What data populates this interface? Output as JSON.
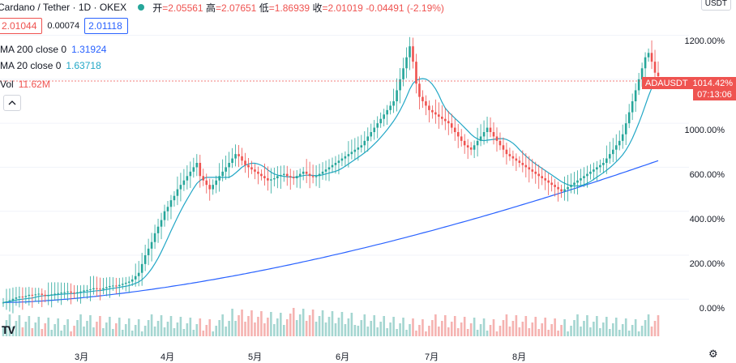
{
  "header": {
    "symbol": "Cardano / Tether · 1D · OKEX",
    "ohlc": [
      {
        "k": "开",
        "v": "=2.05561"
      },
      {
        "k": "高",
        "v": "=2.07651"
      },
      {
        "k": "低",
        "v": "=1.86939"
      },
      {
        "k": "收",
        "v": "=2.01019"
      },
      {
        "k": "",
        "v": "-0.04491 (-2.19%)"
      }
    ]
  },
  "trade": {
    "sell": "2.01044",
    "spread": "0.00074",
    "buy": "2.01118"
  },
  "indicators": [
    {
      "name": "MA 200 close 0",
      "value": "1.31924",
      "color": "#2962ff"
    },
    {
      "name": "MA 20 close 0",
      "value": "1.63718",
      "color": "#22a7c6"
    },
    {
      "name": "Vol",
      "value": "11.62M",
      "color": "#ef5350"
    }
  ],
  "axis": {
    "currency": "USDT",
    "ticks": [
      "1200.00%",
      "1000.00%",
      "800.00%",
      "600.00%",
      "400.00%",
      "200.00%",
      "0.00%"
    ],
    "tick_values": [
      1200,
      1000,
      800,
      600,
      400,
      200,
      0
    ],
    "x_labels": [
      "3月",
      "4月",
      "5月",
      "6月",
      "7月",
      "8月"
    ],
    "last_symbol": "ADAUSDT",
    "last_value": "1014.42%",
    "countdown": "07:13:06"
  },
  "chart_data": {
    "type": "candlestick",
    "y_unit": "percent",
    "close": [
      -15,
      -10,
      -5,
      2,
      8,
      12,
      10,
      15,
      20,
      18,
      22,
      25,
      20,
      15,
      18,
      22,
      25,
      28,
      30,
      32,
      35,
      30,
      28,
      32,
      35,
      40,
      42,
      45,
      50,
      48,
      45,
      50,
      55,
      60,
      62,
      60,
      65,
      70,
      75,
      80,
      90,
      105,
      120,
      160,
      200,
      230,
      260,
      300,
      330,
      360,
      400,
      420,
      450,
      470,
      500,
      520,
      540,
      560,
      580,
      600,
      620,
      560,
      540,
      520,
      500,
      520,
      540,
      560,
      580,
      600,
      620,
      640,
      660,
      650,
      630,
      610,
      600,
      590,
      580,
      570,
      560,
      550,
      540,
      545,
      550,
      560,
      565,
      570,
      560,
      555,
      550,
      560,
      570,
      580,
      570,
      560,
      555,
      560,
      570,
      580,
      590,
      600,
      610,
      620,
      630,
      640,
      650,
      660,
      670,
      680,
      690,
      700,
      720,
      740,
      760,
      780,
      800,
      820,
      840,
      860,
      880,
      900,
      950,
      1000,
      1050,
      1100,
      1150,
      1080,
      980,
      920,
      900,
      880,
      860,
      850,
      840,
      830,
      820,
      810,
      800,
      780,
      760,
      740,
      720,
      700,
      690,
      680,
      700,
      720,
      740,
      760,
      780,
      760,
      740,
      720,
      700,
      680,
      660,
      650,
      640,
      630,
      620,
      610,
      600,
      590,
      580,
      570,
      560,
      550,
      540,
      530,
      520,
      510,
      500,
      490,
      500,
      510,
      520,
      530,
      540,
      550,
      560,
      570,
      580,
      590,
      600,
      610,
      620,
      640,
      660,
      680,
      700,
      720,
      750,
      800,
      850,
      900,
      950,
      1000,
      1050,
      1100,
      1120,
      1080,
      1030,
      1014
    ]
  }
}
